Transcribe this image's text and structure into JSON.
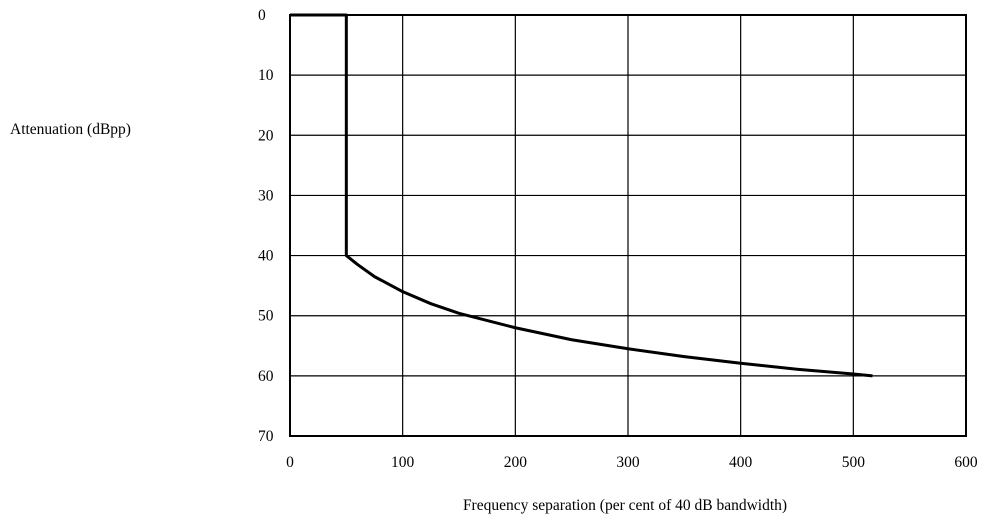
{
  "chart_data": {
    "type": "line",
    "title": "",
    "xlabel": "Frequency separation (per cent of 40 dB bandwidth)",
    "ylabel": "Attenuation (dBpp)",
    "xlim": [
      0,
      600
    ],
    "ylim": [
      0,
      70
    ],
    "y_inverted": true,
    "grid": true,
    "legend": "none",
    "x_ticks": [
      0,
      100,
      200,
      300,
      400,
      500,
      600
    ],
    "y_ticks": [
      0,
      10,
      20,
      30,
      40,
      50,
      60,
      70
    ],
    "series": [
      {
        "color": "#000000",
        "points": [
          [
            0,
            0
          ],
          [
            50,
            0
          ],
          [
            50,
            40
          ],
          [
            60,
            41.5
          ],
          [
            75,
            43.5
          ],
          [
            100,
            46
          ],
          [
            125,
            48
          ],
          [
            150,
            49.6
          ],
          [
            200,
            52
          ],
          [
            250,
            54
          ],
          [
            300,
            55.5
          ],
          [
            350,
            56.8
          ],
          [
            400,
            57.9
          ],
          [
            450,
            58.9
          ],
          [
            500,
            59.7
          ],
          [
            517,
            60
          ]
        ]
      }
    ]
  }
}
